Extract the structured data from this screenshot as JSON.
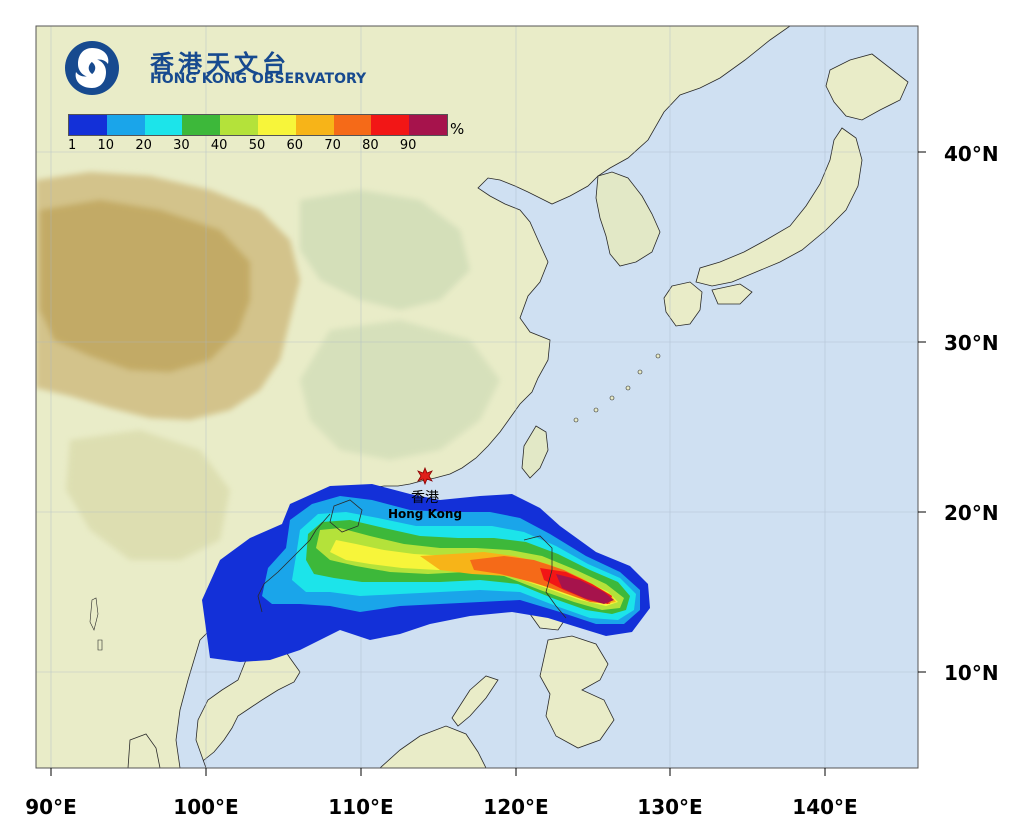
{
  "map": {
    "lon_labels": [
      "90°E",
      "100°E",
      "110°E",
      "120°E",
      "130°E",
      "140°E"
    ],
    "lat_labels": [
      "40°N",
      "30°N",
      "20°N",
      "10°N"
    ],
    "lon_range": [
      90,
      146
    ],
    "lat_range": [
      5,
      45
    ],
    "colors": {
      "sea": "#cfe0f2",
      "land": "#e9ecc8",
      "highland": "#d3c38b",
      "mountain": "#c1a862",
      "hills": "#cfdcb6"
    }
  },
  "logo": {
    "chinese_name": "香港天文台",
    "english_name": "HONG KONG OBSERVATORY",
    "emblem_icon": "hko-emblem-icon"
  },
  "legend": {
    "ticks": [
      "1",
      "10",
      "20",
      "30",
      "40",
      "50",
      "60",
      "70",
      "80",
      "90"
    ],
    "unit": "%",
    "colors": [
      "#1330d8",
      "#1aa5ea",
      "#1ce4ea",
      "#3db83a",
      "#b4e23a",
      "#f7f53a",
      "#f7b418",
      "#f56a18",
      "#f21616",
      "#a6134c"
    ]
  },
  "city": {
    "name_cn": "香港",
    "name_en": "Hong Kong",
    "marker_icon": "red-star-icon",
    "lon": 114.2,
    "lat": 22.3
  },
  "probability_track": {
    "description_values_percent": [
      1,
      10,
      20,
      30,
      40,
      50,
      60,
      70,
      80,
      90
    ],
    "track_points": [
      {
        "lon": 127.0,
        "lat": 15.0
      },
      {
        "lon": 123.0,
        "lat": 16.0
      },
      {
        "lon": 118.0,
        "lat": 17.0
      },
      {
        "lon": 112.0,
        "lat": 17.5
      },
      {
        "lon": 108.0,
        "lat": 18.0
      }
    ]
  }
}
